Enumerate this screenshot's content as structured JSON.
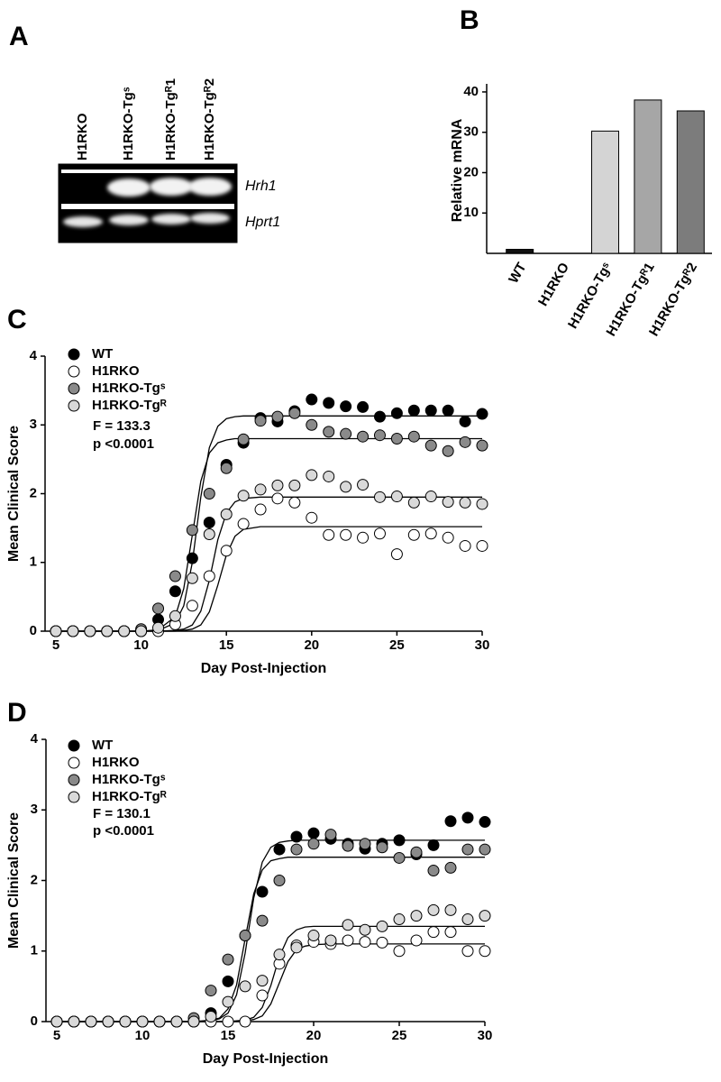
{
  "gel": {
    "panel": "A",
    "lanes": [
      "H1RKO",
      "H1RKO-Tgˢ",
      "H1RKO-Tgᴿ1",
      "H1RKO-Tgᴿ2"
    ],
    "genes": [
      "Hrh1",
      "Hprt1"
    ]
  },
  "chart_data": [
    {
      "type": "bar",
      "panel": "B",
      "y_label": "Relative mRNA",
      "categories": [
        "WT",
        "H1RKO",
        "H1RKO-Tgˢ",
        "H1RKO-Tgᴿ1",
        "H1RKO-Tgᴿ2"
      ],
      "values": [
        1,
        0,
        30.3,
        38,
        35.3
      ],
      "colors": [
        "#111111",
        "#ffffff",
        "#d4d4d4",
        "#a6a6a6",
        "#7c7c7c"
      ],
      "ylim": [
        0,
        42
      ],
      "yticks": [
        10,
        20,
        30,
        40
      ]
    },
    {
      "type": "scatter",
      "panel": "C",
      "x_label": "Day Post-Injection",
      "y_label": "Mean Clinical Score",
      "annotations": [
        "F = 133.3",
        "p <0.0001"
      ],
      "x": [
        5,
        6,
        7,
        8,
        9,
        10,
        11,
        12,
        13,
        14,
        15,
        16,
        17,
        18,
        19,
        20,
        21,
        22,
        23,
        24,
        25,
        26,
        27,
        28,
        29,
        30
      ],
      "fit_x": [
        5,
        10,
        11,
        12,
        12.5,
        13,
        13.5,
        14,
        14.5,
        15,
        15.5,
        16,
        17,
        20,
        30
      ],
      "series": [
        {
          "name": "WT",
          "color": "#000000",
          "values": [
            0,
            0,
            0,
            0,
            0,
            0,
            0.17,
            0.58,
            1.06,
            1.58,
            2.42,
            2.74,
            3.1,
            3.05,
            3.2,
            3.37,
            3.32,
            3.27,
            3.26,
            3.12,
            3.17,
            3.21,
            3.21,
            3.21,
            3.05,
            3.16
          ],
          "fit": [
            0,
            0,
            0.01,
            0.12,
            0.37,
            1.0,
            1.95,
            2.67,
            2.98,
            3.09,
            3.12,
            3.13,
            3.13,
            3.13,
            3.13
          ]
        },
        {
          "name": "H1RKO",
          "color": "#ffffff",
          "values": [
            0,
            0,
            0,
            0,
            0,
            0,
            0,
            0.1,
            0.37,
            0.8,
            1.17,
            1.56,
            1.77,
            1.93,
            1.87,
            1.65,
            1.4,
            1.4,
            1.36,
            1.42,
            1.12,
            1.4,
            1.42,
            1.36,
            1.24,
            1.24
          ],
          "fit": [
            0,
            0,
            0,
            0,
            0.01,
            0.03,
            0.09,
            0.28,
            0.67,
            1.11,
            1.38,
            1.48,
            1.52,
            1.52,
            1.52
          ]
        },
        {
          "name": "H1RKO-Tgˢ",
          "color": "#8a8a8a",
          "values": [
            0,
            0,
            0,
            0,
            0,
            0.03,
            0.33,
            0.8,
            1.47,
            2.0,
            2.37,
            2.79,
            3.06,
            3.12,
            3.17,
            3.0,
            2.9,
            2.87,
            2.83,
            2.85,
            2.8,
            2.83,
            2.7,
            2.62,
            2.75,
            2.7
          ],
          "fit": [
            0,
            0,
            0.02,
            0.21,
            0.62,
            1.4,
            2.18,
            2.59,
            2.74,
            2.78,
            2.8,
            2.8,
            2.8,
            2.8,
            2.8
          ]
        },
        {
          "name": "H1RKO-Tgᴿ",
          "color": "#d9d9d9",
          "values": [
            0,
            0,
            0,
            0,
            0,
            0,
            0.05,
            0.22,
            0.77,
            1.41,
            1.7,
            1.97,
            2.06,
            2.12,
            2.12,
            2.27,
            2.25,
            2.1,
            2.13,
            1.95,
            1.96,
            1.87,
            1.96,
            1.88,
            1.87,
            1.85
          ],
          "fit": [
            0,
            0,
            0,
            0.01,
            0.03,
            0.09,
            0.29,
            0.74,
            1.33,
            1.72,
            1.88,
            1.93,
            1.95,
            1.95,
            1.95
          ]
        }
      ],
      "xlim": [
        5,
        30
      ],
      "ylim": [
        0,
        4
      ],
      "xticks": [
        5,
        10,
        15,
        20,
        25,
        30
      ],
      "yticks": [
        0,
        1,
        2,
        3,
        4
      ]
    },
    {
      "type": "scatter",
      "panel": "D",
      "x_label": "Day Post-Injection",
      "y_label": "Mean Clinical Score",
      "annotations": [
        "F = 130.1",
        "p <0.0001"
      ],
      "x": [
        5,
        6,
        7,
        8,
        9,
        10,
        11,
        12,
        13,
        14,
        15,
        16,
        17,
        18,
        19,
        20,
        21,
        22,
        23,
        24,
        25,
        26,
        27,
        28,
        29,
        30
      ],
      "fit_x": [
        5,
        13,
        14,
        14.5,
        15,
        15.5,
        16,
        16.5,
        17,
        17.5,
        18,
        18.5,
        19,
        19.5,
        20,
        21,
        30
      ],
      "series": [
        {
          "name": "WT",
          "color": "#000000",
          "values": [
            0,
            0,
            0,
            0,
            0,
            0,
            0,
            0,
            0,
            0.12,
            0.57,
            1.22,
            1.84,
            2.44,
            2.62,
            2.67,
            2.59,
            2.52,
            2.45,
            2.52,
            2.57,
            2.37,
            2.5,
            2.84,
            2.89,
            2.83
          ],
          "fit": [
            0,
            0,
            0.01,
            0.04,
            0.12,
            0.38,
            0.97,
            1.75,
            2.26,
            2.47,
            2.54,
            2.56,
            2.57,
            2.57,
            2.57,
            2.57,
            2.57
          ]
        },
        {
          "name": "H1RKO",
          "color": "#ffffff",
          "values": [
            0,
            0,
            0,
            0,
            0,
            0,
            0,
            0,
            0,
            0,
            0,
            0,
            0.37,
            0.82,
            1.08,
            1.13,
            1.1,
            1.15,
            1.13,
            1.12,
            1.0,
            1.15,
            1.27,
            1.27,
            1.0,
            1.0
          ],
          "fit": [
            0,
            0,
            0,
            0,
            0,
            0,
            0.01,
            0.03,
            0.08,
            0.25,
            0.55,
            0.85,
            1.02,
            1.07,
            1.09,
            1.1,
            1.1
          ]
        },
        {
          "name": "H1RKO-Tgˢ",
          "color": "#8a8a8a",
          "values": [
            0,
            0,
            0,
            0,
            0,
            0,
            0,
            0,
            0.05,
            0.44,
            0.88,
            1.22,
            1.43,
            2.0,
            2.44,
            2.52,
            2.65,
            2.49,
            2.52,
            2.47,
            2.32,
            2.4,
            2.14,
            2.18,
            2.44,
            2.44
          ],
          "fit": [
            0,
            0,
            0.02,
            0.05,
            0.18,
            0.52,
            1.17,
            1.81,
            2.15,
            2.28,
            2.31,
            2.33,
            2.33,
            2.33,
            2.33,
            2.33,
            2.33
          ]
        },
        {
          "name": "H1RKO-Tgᴿ",
          "color": "#d9d9d9",
          "values": [
            0,
            0,
            0,
            0,
            0,
            0,
            0,
            0,
            0,
            0.07,
            0.28,
            0.5,
            0.58,
            0.95,
            1.05,
            1.22,
            1.15,
            1.37,
            1.3,
            1.35,
            1.45,
            1.5,
            1.58,
            1.58,
            1.45,
            1.5
          ],
          "fit": [
            0,
            0,
            0,
            0,
            0,
            0.01,
            0.02,
            0.06,
            0.2,
            0.51,
            0.92,
            1.19,
            1.3,
            1.34,
            1.35,
            1.35,
            1.35
          ]
        }
      ],
      "xlim": [
        5,
        30
      ],
      "ylim": [
        0,
        4
      ],
      "xticks": [
        5,
        10,
        15,
        20,
        25,
        30
      ],
      "yticks": [
        0,
        1,
        2,
        3,
        4
      ]
    }
  ]
}
